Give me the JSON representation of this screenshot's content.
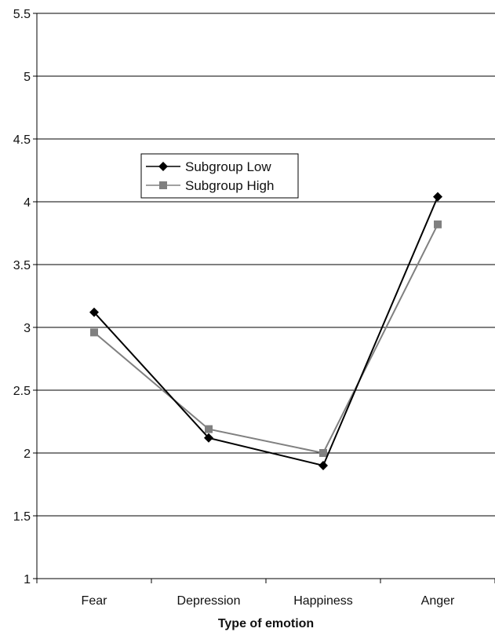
{
  "chart_data": {
    "type": "line",
    "title": "",
    "xlabel": "Type of emotion",
    "ylabel": "",
    "categories": [
      "Fear",
      "Depression",
      "Happiness",
      "Anger"
    ],
    "ylim": [
      1,
      5.5
    ],
    "yticks": [
      1,
      1.5,
      2,
      2.5,
      3,
      3.5,
      4,
      4.5,
      5,
      5.5
    ],
    "ytick_labels": [
      "1",
      "1.5",
      "2",
      "2.5",
      "3",
      "3.5",
      "4",
      "4.5",
      "5",
      "5.5"
    ],
    "grid": "horizontal",
    "legend_position": "upper-left",
    "series": [
      {
        "name": "Subgroup Low",
        "values": [
          3.12,
          2.12,
          1.9,
          4.04
        ],
        "color": "#000000",
        "marker": "diamond"
      },
      {
        "name": "Subgroup High",
        "values": [
          2.96,
          2.19,
          2.0,
          3.82
        ],
        "color": "#808080",
        "marker": "square"
      }
    ]
  }
}
